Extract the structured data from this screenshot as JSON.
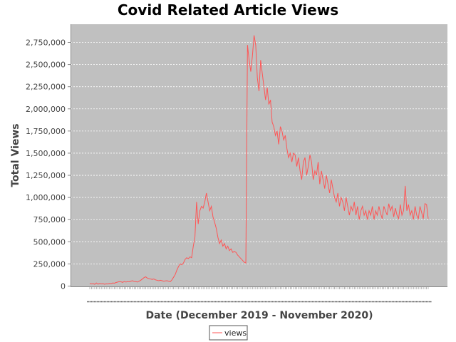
{
  "chart_data": {
    "type": "line",
    "title": "Covid Related Article Views",
    "xlabel": "Date (December 2019 - November 2020)",
    "ylabel": "Total Views",
    "ylim": [
      0,
      2850000
    ],
    "y_ticks": [
      0,
      250000,
      500000,
      750000,
      1000000,
      1250000,
      1500000,
      1750000,
      2000000,
      2250000,
      2500000,
      2750000
    ],
    "y_tick_labels": [
      "0",
      "250,000",
      "500,000",
      "750,000",
      "1,000,000",
      "1,250,000",
      "1,500,000",
      "1,750,000",
      "2,000,000",
      "2,250,000",
      "2,500,000",
      "2,750,000"
    ],
    "grid": true,
    "legend": "bottom-center",
    "plot_background": "#c0c0c0",
    "gridline_color": "#ffffff",
    "series": [
      {
        "name": "views",
        "color": "#ff5555",
        "values": [
          30000,
          25000,
          28000,
          20000,
          35000,
          22000,
          30000,
          25000,
          28000,
          20000,
          26000,
          24000,
          30000,
          28000,
          35000,
          32000,
          40000,
          45000,
          50000,
          48000,
          42000,
          52000,
          45000,
          50000,
          48000,
          55000,
          60000,
          52000,
          50000,
          45000,
          55000,
          65000,
          80000,
          95000,
          105000,
          90000,
          85000,
          80000,
          75000,
          80000,
          70000,
          65000,
          60000,
          65000,
          60000,
          55000,
          58000,
          60000,
          55000,
          50000,
          70000,
          100000,
          130000,
          180000,
          220000,
          250000,
          240000,
          260000,
          300000,
          320000,
          310000,
          330000,
          320000,
          450000,
          550000,
          950000,
          700000,
          850000,
          900000,
          880000,
          950000,
          1050000,
          950000,
          850000,
          900000,
          780000,
          720000,
          650000,
          550000,
          480000,
          520000,
          450000,
          480000,
          420000,
          450000,
          400000,
          420000,
          380000,
          390000,
          380000,
          350000,
          330000,
          310000,
          290000,
          270000,
          260000,
          2720000,
          2550000,
          2420000,
          2600000,
          2830000,
          2720000,
          2350000,
          2200000,
          2550000,
          2400000,
          2250000,
          2100000,
          2240000,
          2050000,
          2100000,
          1850000,
          1800000,
          1700000,
          1750000,
          1600000,
          1800000,
          1750000,
          1650000,
          1700000,
          1550000,
          1450000,
          1500000,
          1400000,
          1500000,
          1480000,
          1350000,
          1450000,
          1300000,
          1200000,
          1400000,
          1450000,
          1250000,
          1350000,
          1480000,
          1400000,
          1200000,
          1300000,
          1250000,
          1400000,
          1150000,
          1300000,
          1200000,
          1100000,
          1250000,
          1150000,
          1050000,
          1200000,
          1100000,
          1000000,
          950000,
          1050000,
          900000,
          1000000,
          950000,
          850000,
          1000000,
          900000,
          800000,
          900000,
          850000,
          950000,
          800000,
          900000,
          750000,
          850000,
          900000,
          800000,
          850000,
          750000,
          850000,
          800000,
          900000,
          750000,
          850000,
          800000,
          900000,
          820000,
          760000,
          900000,
          850000,
          800000,
          930000,
          850000,
          900000,
          780000,
          880000,
          800000,
          760000,
          920000,
          800000,
          850000,
          1130000,
          850000,
          920000,
          800000,
          850000,
          750000,
          900000,
          800000,
          760000,
          900000,
          830000,
          760000,
          930000,
          920000,
          760000
        ]
      }
    ]
  }
}
